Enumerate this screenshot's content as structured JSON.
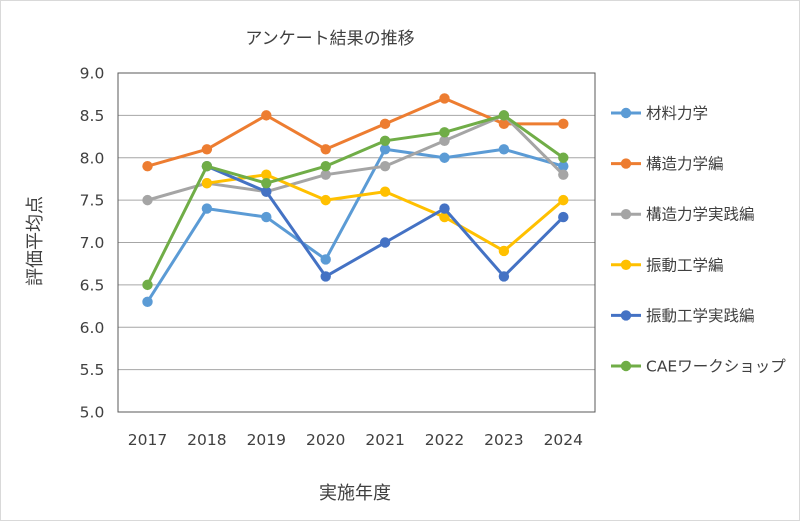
{
  "chart_data": {
    "type": "line",
    "title": "アンケート結果の推移",
    "xlabel": "実施年度",
    "ylabel": "評価平均点",
    "categories": [
      "2017",
      "2018",
      "2019",
      "2020",
      "2021",
      "2022",
      "2023",
      "2024"
    ],
    "ylim": [
      5.0,
      9.0
    ],
    "yticks": [
      "5.0",
      "5.5",
      "6.0",
      "6.5",
      "7.0",
      "7.5",
      "8.0",
      "8.5",
      "9.0"
    ],
    "grid": true,
    "legend_position": "right",
    "series": [
      {
        "name": "材料力学",
        "color": "#5b9bd5",
        "values": [
          6.3,
          7.4,
          7.3,
          6.8,
          8.1,
          8.0,
          8.1,
          7.9
        ]
      },
      {
        "name": "構造力学編",
        "color": "#ed7d31",
        "values": [
          7.9,
          8.1,
          8.5,
          8.1,
          8.4,
          8.7,
          8.4,
          8.4
        ]
      },
      {
        "name": "構造力学実践編",
        "color": "#a5a5a5",
        "values": [
          7.5,
          7.7,
          7.6,
          7.8,
          7.9,
          8.2,
          8.5,
          7.8
        ]
      },
      {
        "name": "振動工学編",
        "color": "#ffc000",
        "values": [
          null,
          7.7,
          7.8,
          7.5,
          7.6,
          7.3,
          6.9,
          7.5
        ]
      },
      {
        "name": "振動工学実践編",
        "color": "#4472c4",
        "values": [
          null,
          7.9,
          7.6,
          6.6,
          7.0,
          7.4,
          6.6,
          7.3
        ]
      },
      {
        "name": "CAEワークショップ",
        "color": "#70ad47",
        "values": [
          6.5,
          7.9,
          7.7,
          7.9,
          8.2,
          8.3,
          8.5,
          8.0
        ]
      }
    ]
  }
}
